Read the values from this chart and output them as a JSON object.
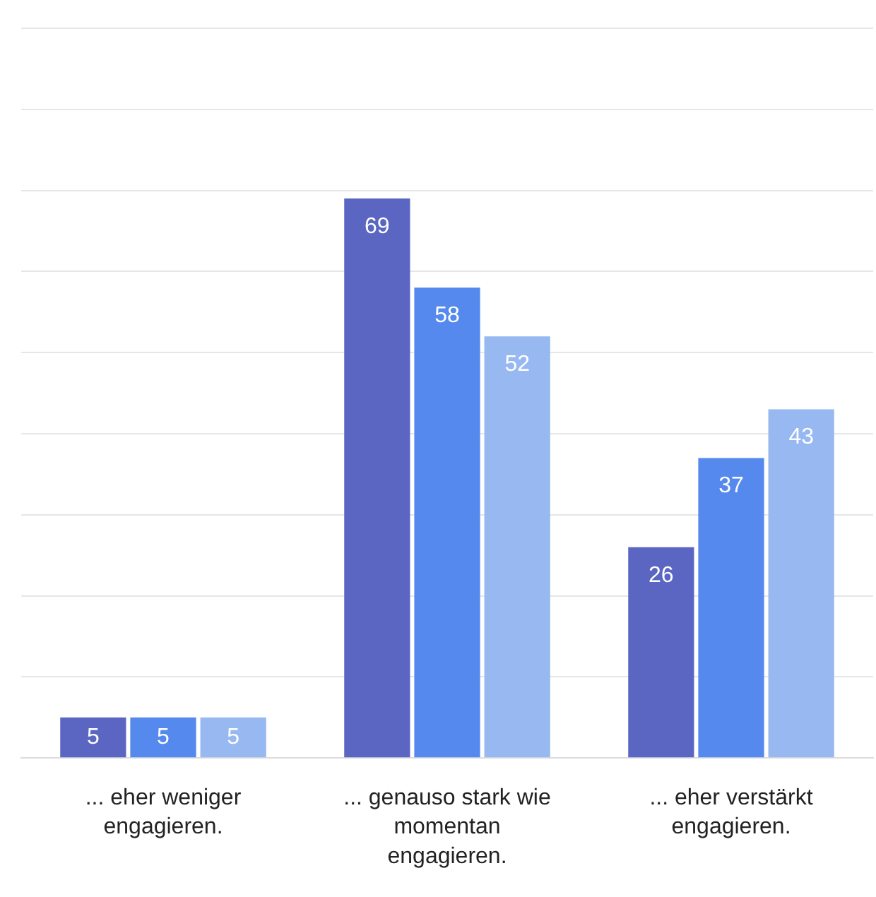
{
  "chart_data": {
    "type": "bar",
    "categories": [
      "... eher weniger engagieren.",
      "... genauso stark wie momentan engagieren.",
      "... eher verstärkt engagieren."
    ],
    "series": [
      {
        "color": "#5b66c2",
        "values": [
          5,
          69,
          26
        ]
      },
      {
        "color": "#5589ee",
        "values": [
          5,
          58,
          37
        ]
      },
      {
        "color": "#97b8f0",
        "values": [
          5,
          52,
          43
        ]
      }
    ],
    "ylim": [
      0,
      90
    ],
    "yticks": [
      {
        "value": 0,
        "label": null
      },
      {
        "value": 10,
        "label": null
      },
      {
        "value": 20,
        "label": null
      },
      {
        "value": 30,
        "label": null
      },
      {
        "value": 40,
        "label": null
      },
      {
        "value": 50,
        "label": null
      },
      {
        "value": 60,
        "label": null
      },
      {
        "value": 70,
        "label": null
      },
      {
        "value": 80,
        "label": null
      },
      {
        "value": 90,
        "label": null
      }
    ],
    "tick_labels": "x",
    "grid": "y",
    "legend": false,
    "data_labels": true
  }
}
